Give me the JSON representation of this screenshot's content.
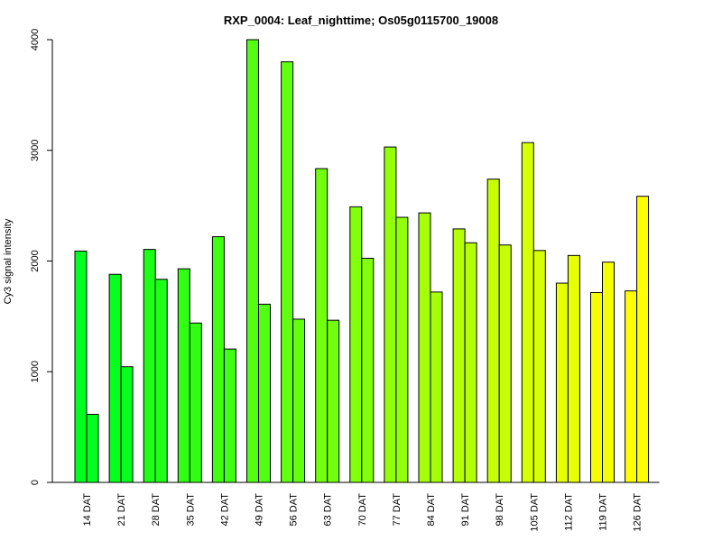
{
  "chart_data": {
    "type": "bar",
    "title": "RXP_0004: Leaf_nighttime; Os05g0115700_19008",
    "xlabel": "",
    "ylabel": "Cy3 signal intensity",
    "ylim": [
      0,
      4000
    ],
    "yticks": [
      0,
      1000,
      2000,
      3000,
      4000
    ],
    "grid": false,
    "categories": [
      "14 DAT",
      "21 DAT",
      "28 DAT",
      "35 DAT",
      "42 DAT",
      "49 DAT",
      "56 DAT",
      "63 DAT",
      "70 DAT",
      "77 DAT",
      "84 DAT",
      "91 DAT",
      "98 DAT",
      "105 DAT",
      "112 DAT",
      "119 DAT",
      "126 DAT"
    ],
    "series": [
      {
        "values": [
          2090,
          1880,
          2105,
          1930,
          2220,
          4000,
          3800,
          2835,
          2490,
          3030,
          2435,
          2290,
          2740,
          3070,
          1800,
          1715,
          1730
        ]
      },
      {
        "values": [
          615,
          1045,
          1835,
          1440,
          1205,
          1610,
          1475,
          1465,
          2025,
          2395,
          1720,
          2165,
          2145,
          2095,
          2050,
          1990,
          2585
        ]
      }
    ],
    "colors": [
      "#00ff21",
      "#07ff1d",
      "#1eff17",
      "#30ff14",
      "#41ff12",
      "#52ff10",
      "#62ff0f",
      "#72ff0d",
      "#82ff0b",
      "#93ff09",
      "#a4ff07",
      "#b5ff06",
      "#c6ff05",
      "#d6ff04",
      "#e6ff03",
      "#f4ff02",
      "#ffff00"
    ]
  }
}
